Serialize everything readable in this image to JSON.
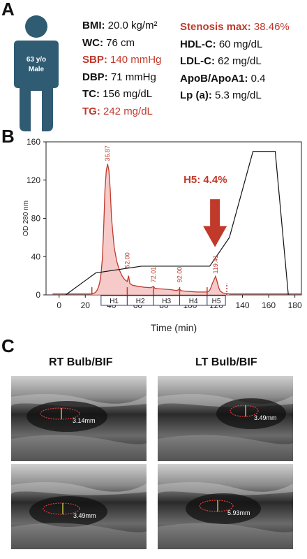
{
  "panel_a": {
    "label": "A",
    "person_label_1": "63 y/o",
    "person_label_2": "Male",
    "stats_left": [
      {
        "name": "BMI:",
        "value": " 20.0 kg/m²",
        "highlight": false
      },
      {
        "name": "WC:",
        "value": " 76 cm",
        "highlight": false
      },
      {
        "name": "SBP:",
        "value": " 140 mmHg",
        "highlight": true
      },
      {
        "name": "DBP:",
        "value": " 71 mmHg",
        "highlight": false
      },
      {
        "name": "TC:",
        "value": " 156 mg/dL",
        "highlight": false
      },
      {
        "name": "TG:",
        "value": " 242 mg/dL",
        "highlight": true
      }
    ],
    "stats_right": [
      {
        "name": "Stenosis max:",
        "value": " 38.46%",
        "highlight": true
      },
      {
        "name": "HDL-C:",
        "value": " 60 mg/dL",
        "highlight": false
      },
      {
        "name": "LDL-C:",
        "value": " 62 mg/dL",
        "highlight": false
      },
      {
        "name": "ApoB/ApoA1:",
        "value": " 0.4",
        "highlight": false
      },
      {
        "name": "Lp (a):",
        "value": " 5.3 mg/dL",
        "highlight": false
      }
    ],
    "person_color": "#2f5b73",
    "highlight_color": "#c0392b"
  },
  "panel_b": {
    "label": "B",
    "annotation": "H5: 4.4%"
  },
  "chart_data": {
    "type": "line",
    "xlabel": "Time (min)",
    "ylabel": "OD 280 nm",
    "xlim": [
      -10,
      185
    ],
    "ylim": [
      0,
      160
    ],
    "xticks": [
      0,
      20,
      40,
      60,
      80,
      100,
      120,
      140,
      160,
      180
    ],
    "yticks": [
      0,
      40,
      80,
      120,
      160
    ],
    "series": [
      {
        "kind": "absorbance",
        "color": "#c0392b",
        "x": [
          24,
          26,
          27,
          28,
          29,
          30,
          31,
          32,
          33,
          34,
          35,
          36,
          37,
          38,
          39,
          40,
          42,
          44,
          46,
          48,
          50,
          52,
          53,
          54,
          56,
          60,
          65,
          70,
          72,
          73,
          75,
          80,
          85,
          90,
          92,
          93,
          95,
          100,
          105,
          110,
          113,
          114,
          115,
          116,
          117,
          118,
          119,
          119.4,
          120,
          121,
          122,
          123,
          125,
          130
        ],
        "y": [
          1,
          1.5,
          2,
          3,
          5,
          8,
          13,
          22,
          38,
          70,
          110,
          130,
          136.9,
          130,
          110,
          80,
          50,
          35,
          26,
          20,
          16,
          14,
          20,
          12,
          10,
          9,
          8,
          7.5,
          9,
          7,
          6.5,
          6,
          5.5,
          4.5,
          6,
          4.5,
          4,
          3.5,
          3,
          3,
          3,
          3.5,
          5,
          8,
          12,
          15,
          18,
          19.4,
          17,
          12,
          7,
          4,
          2,
          1
        ]
      },
      {
        "kind": "gradient",
        "color": "#111111",
        "x": [
          5,
          28,
          63,
          115,
          130,
          148,
          165,
          175
        ],
        "y": [
          0,
          23,
          30,
          30,
          60,
          150,
          150,
          0
        ]
      }
    ],
    "peak_labels": [
      {
        "x": 36.87,
        "y": 136.9,
        "text": "36.87"
      },
      {
        "x": 52.0,
        "y": 25,
        "text": "52.00"
      },
      {
        "x": 72.01,
        "y": 10,
        "text": "72.01"
      },
      {
        "x": 92.0,
        "y": 10,
        "text": "92.00"
      },
      {
        "x": 119.41,
        "y": 19.4,
        "text": "119.41"
      }
    ],
    "fractions": [
      {
        "name": "H1",
        "start": 32,
        "end": 52
      },
      {
        "name": "H2",
        "start": 52,
        "end": 72
      },
      {
        "name": "H3",
        "start": 72,
        "end": 92
      },
      {
        "name": "H4",
        "start": 92,
        "end": 113
      },
      {
        "name": "H5",
        "start": 113,
        "end": 127
      }
    ],
    "fraction_markers": [
      25,
      52,
      72,
      92,
      113,
      128
    ]
  },
  "panel_c": {
    "label": "C",
    "left_title": "RT Bulb/BIF",
    "right_title": "LT Bulb/BIF",
    "images": [
      {
        "measure": "3.14mm"
      },
      {
        "measure": "3.49mm"
      },
      {
        "measure": "3.49mm"
      },
      {
        "measure": "5.93mm"
      }
    ]
  }
}
